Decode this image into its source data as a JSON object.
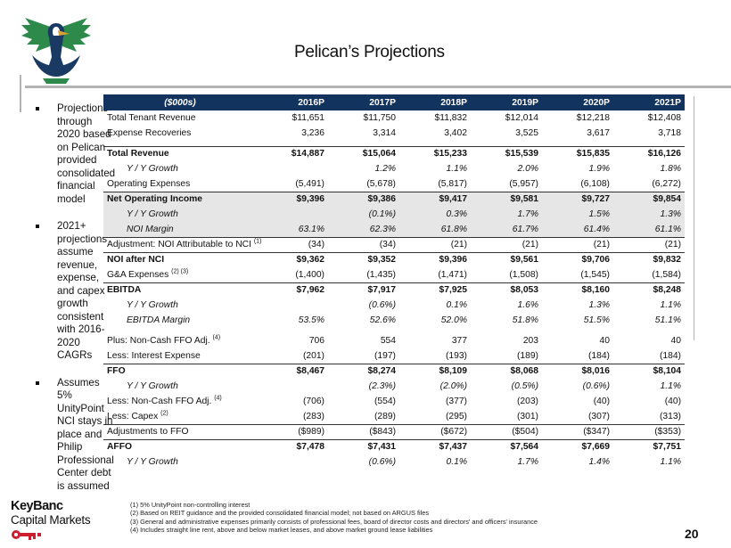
{
  "title": "Pelican’s Projections",
  "bullets": [
    "Projections through 2020 based on Pelican provided consolidated financial model",
    "2021+ projections assume revenue, expense, and capex growth consistent with 2016-2020 CAGRs",
    "Assumes 5% UnityPoint NCI stays in place and Philip Professional Center debt is assumed"
  ],
  "table": {
    "header_label": "($000s)",
    "years": [
      "2016P",
      "2017P",
      "2018P",
      "2019P",
      "2020P",
      "2021P"
    ],
    "rows": [
      {
        "label": "Total Tenant Revenue",
        "values": [
          "$11,651",
          "$11,750",
          "$11,832",
          "$12,014",
          "$12,218",
          "$12,408"
        ]
      },
      {
        "label": "Expense Recoveries",
        "values": [
          "3,236",
          "3,314",
          "3,402",
          "3,525",
          "3,617",
          "3,718"
        ]
      },
      {
        "label": "Total Revenue",
        "values": [
          "$14,887",
          "$15,064",
          "$15,233",
          "$15,539",
          "$15,835",
          "$16,126"
        ]
      },
      {
        "label": "Y / Y Growth",
        "values": [
          "",
          "1.2%",
          "1.1%",
          "2.0%",
          "1.9%",
          "1.8%"
        ]
      },
      {
        "label": "Operating Expenses",
        "values": [
          "(5,491)",
          "(5,678)",
          "(5,817)",
          "(5,957)",
          "(6,108)",
          "(6,272)"
        ]
      },
      {
        "label": "Net Operating Income",
        "values": [
          "$9,396",
          "$9,386",
          "$9,417",
          "$9,581",
          "$9,727",
          "$9,854"
        ]
      },
      {
        "label": "Y / Y Growth",
        "values": [
          "",
          "(0.1%)",
          "0.3%",
          "1.7%",
          "1.5%",
          "1.3%"
        ]
      },
      {
        "label": "NOI Margin",
        "values": [
          "63.1%",
          "62.3%",
          "61.8%",
          "61.7%",
          "61.4%",
          "61.1%"
        ]
      },
      {
        "label": "Adjustment: NOI Attributable to NCI",
        "sup": "(1)",
        "values": [
          "(34)",
          "(34)",
          "(21)",
          "(21)",
          "(21)",
          "(21)"
        ]
      },
      {
        "label": "NOI after NCI",
        "values": [
          "$9,362",
          "$9,352",
          "$9,396",
          "$9,561",
          "$9,706",
          "$9,832"
        ]
      },
      {
        "label": "G&A Expenses",
        "sup": "(2) (3)",
        "values": [
          "(1,400)",
          "(1,435)",
          "(1,471)",
          "(1,508)",
          "(1,545)",
          "(1,584)"
        ]
      },
      {
        "label": "EBITDA",
        "values": [
          "$7,962",
          "$7,917",
          "$7,925",
          "$8,053",
          "$8,160",
          "$8,248"
        ]
      },
      {
        "label": "Y / Y Growth",
        "values": [
          "",
          "(0.6%)",
          "0.1%",
          "1.6%",
          "1.3%",
          "1.1%"
        ]
      },
      {
        "label": "EBITDA Margin",
        "values": [
          "53.5%",
          "52.6%",
          "52.0%",
          "51.8%",
          "51.5%",
          "51.1%"
        ]
      },
      {
        "label": "Plus: Non-Cash FFO Adj.",
        "sup": "(4)",
        "values": [
          "706",
          "554",
          "377",
          "203",
          "40",
          "40"
        ]
      },
      {
        "label": "Less: Interest Expense",
        "values": [
          "(201)",
          "(197)",
          "(193)",
          "(189)",
          "(184)",
          "(184)"
        ]
      },
      {
        "label": "FFO",
        "values": [
          "$8,467",
          "$8,274",
          "$8,109",
          "$8,068",
          "$8,016",
          "$8,104"
        ]
      },
      {
        "label": "Y / Y Growth",
        "values": [
          "",
          "(2.3%)",
          "(2.0%)",
          "(0.5%)",
          "(0.6%)",
          "1.1%"
        ]
      },
      {
        "label": "Less: Non-Cash FFO Adj.",
        "sup": "(4)",
        "values": [
          "(706)",
          "(554)",
          "(377)",
          "(203)",
          "(40)",
          "(40)"
        ]
      },
      {
        "label": "Less: Capex",
        "sup": "(2)",
        "values": [
          "(283)",
          "(289)",
          "(295)",
          "(301)",
          "(307)",
          "(313)"
        ]
      },
      {
        "label": "Adjustments to FFO",
        "values": [
          "($989)",
          "($843)",
          "($672)",
          "($504)",
          "($347)",
          "($353)"
        ]
      },
      {
        "label": "AFFO",
        "values": [
          "$7,478",
          "$7,431",
          "$7,437",
          "$7,564",
          "$7,669",
          "$7,751"
        ]
      },
      {
        "label": "Y / Y Growth",
        "values": [
          "",
          "(0.6%)",
          "0.1%",
          "1.7%",
          "1.4%",
          "1.1%"
        ]
      }
    ]
  },
  "footnotes": [
    "(1) 5% UnityPoint non-controlling interest",
    "(2) Based on REIT guidance and the provided consolidated financial model; not based on ARGUS files",
    "(3) General and administrative expenses primarily consists of professional fees, board of director costs and directors' and officers' insurance",
    "(4) Includes straight line rent, above and below market leases, and above market ground lease liabilities"
  ],
  "branding": {
    "company_name": "KeyBanc",
    "company_sub": "Capital Markets",
    "key_color": "#cc1f2f",
    "logo_green": "#2e8a4a",
    "logo_navy": "#1b3a63"
  },
  "page_number": "20"
}
